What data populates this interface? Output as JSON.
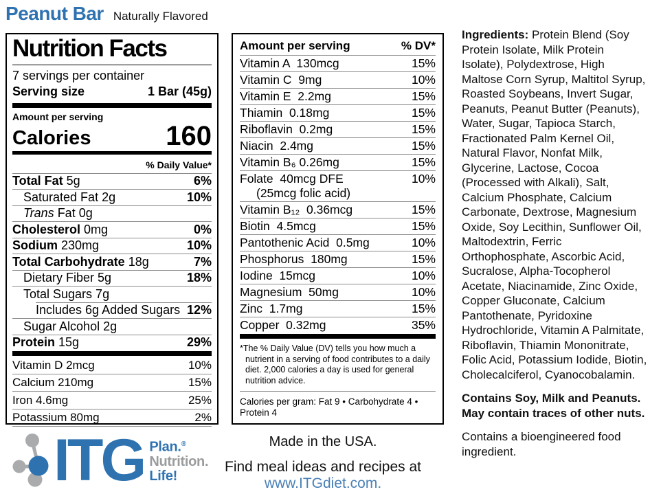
{
  "colors": {
    "brand_blue": "#2e72b0",
    "logo_gray": "#9a9c9e",
    "link_blue": "#4a80b5",
    "rule_gray": "#8a8a8a"
  },
  "header": {
    "product_name": "Peanut Bar",
    "subtitle": "Naturally Flavored"
  },
  "nutrition_facts": {
    "title": "Nutrition Facts",
    "servings_per_container": "7 servings per container",
    "serving_size_label": "Serving size",
    "serving_size_value": "1 Bar (45g)",
    "amount_per_serving": "Amount per serving",
    "calories_label": "Calories",
    "calories_value": "160",
    "daily_value_header": "% Daily Value*",
    "rows": [
      {
        "parts": [
          [
            "Total Fat",
            "b"
          ],
          [
            " 5g",
            ""
          ]
        ],
        "dv": "6%",
        "indent": 0
      },
      {
        "parts": [
          [
            "Saturated Fat 2g",
            ""
          ]
        ],
        "dv": "10%",
        "indent": 1
      },
      {
        "parts": [
          [
            "Trans",
            "i"
          ],
          [
            " Fat 0g",
            ""
          ]
        ],
        "dv": "",
        "indent": 1
      },
      {
        "parts": [
          [
            "Cholesterol",
            "b"
          ],
          [
            " 0mg",
            ""
          ]
        ],
        "dv": "0%",
        "indent": 0
      },
      {
        "parts": [
          [
            "Sodium",
            "b"
          ],
          [
            " 230mg",
            ""
          ]
        ],
        "dv": "10%",
        "indent": 0
      },
      {
        "parts": [
          [
            "Total Carbohydrate",
            "b"
          ],
          [
            " 18g",
            ""
          ]
        ],
        "dv": "7%",
        "indent": 0
      },
      {
        "parts": [
          [
            "Dietary Fiber 5g",
            ""
          ]
        ],
        "dv": "18%",
        "indent": 1
      },
      {
        "parts": [
          [
            "Total Sugars 7g",
            ""
          ]
        ],
        "dv": "",
        "indent": 1
      },
      {
        "parts": [
          [
            "Includes 6g Added Sugars",
            ""
          ]
        ],
        "dv": "12%",
        "indent": 2,
        "sep_indent": true
      },
      {
        "parts": [
          [
            "Sugar Alcohol 2g",
            ""
          ]
        ],
        "dv": "",
        "indent": 1
      },
      {
        "parts": [
          [
            "Protein",
            "b"
          ],
          [
            " 15g",
            ""
          ]
        ],
        "dv": "29%",
        "indent": 0
      }
    ],
    "micros": [
      {
        "name": "Vitamin D 2mcg",
        "dv": "10%"
      },
      {
        "name": "Calcium 210mg",
        "dv": "15%"
      },
      {
        "name": "Iron 4.6mg",
        "dv": "25%"
      },
      {
        "name": "Potassium 80mg",
        "dv": "2%"
      }
    ]
  },
  "vitamin_panel": {
    "header_left": "Amount per serving",
    "header_right": "% DV*",
    "rows": [
      {
        "name": "Vitamin A  130mcg",
        "dv": "15%"
      },
      {
        "name": "Vitamin C  9mg",
        "dv": "10%"
      },
      {
        "name": "Vitamin E  2.2mg",
        "dv": "15%"
      },
      {
        "name": "Thiamin  0.18mg",
        "dv": "15%"
      },
      {
        "name": "Riboflavin  0.2mg",
        "dv": "15%"
      },
      {
        "name": "Niacin  2.4mg",
        "dv": "15%"
      },
      {
        "name": "Vitamin B₆ 0.26mg",
        "dv": "15%"
      },
      {
        "name": "Folate  40mcg DFE",
        "dv": "10%",
        "line2": "(25mcg folic acid)"
      },
      {
        "name": "Vitamin B₁₂  0.36mcg",
        "dv": "15%"
      },
      {
        "name": "Biotin  4.5mcg",
        "dv": "15%"
      },
      {
        "name": "Pantothenic Acid  0.5mg",
        "dv": "10%"
      },
      {
        "name": "Phosphorus  180mg",
        "dv": "15%"
      },
      {
        "name": "Iodine  15mcg",
        "dv": "10%"
      },
      {
        "name": "Magnesium  50mg",
        "dv": "10%"
      },
      {
        "name": "Zinc  1.7mg",
        "dv": "15%"
      },
      {
        "name": "Copper  0.32mg",
        "dv": "35%"
      }
    ],
    "footnote": "*The % Daily Value (DV) tells you how much a nutrient in a serving of food contributes to a daily diet. 2,000 calories a day is used for general nutrition advice.",
    "calories_per_gram": "Calories per gram: Fat 9 • Carbohydrate 4 • Protein 4"
  },
  "ingredients": {
    "label": "Ingredients:",
    "text": " Protein Blend (Soy Protein Isolate, Milk Protein Isolate), Polydextrose, High Maltose Corn Syrup, Maltitol Syrup, Roasted Soybeans, Invert Sugar, Peanuts, Peanut Butter (Peanuts), Water, Sugar, Tapioca Starch, Fractionated Palm Kernel Oil, Natural Flavor, Nonfat Milk, Glycerine, Lactose, Cocoa (Processed with Alkali), Salt, Calcium Phosphate, Calcium Carbonate, Dextrose, Magnesium Oxide, Soy Lecithin, Sunflower Oil, Maltodextrin, Ferric Orthophosphate, Ascorbic Acid, Sucralose, Alpha-Tocopherol Acetate, Niacinamide, Zinc Oxide, Copper Gluconate, Calcium Pantothenate, Pyridoxine Hydrochloride, Vitamin A Palmitate, Riboflavin, Thiamin Mononitrate, Folic Acid, Potassium Iodide, Biotin, Cholecalciferol, Cyanocobalamin.",
    "allergen": "Contains Soy, Milk and Peanuts. May contain traces of other nuts.",
    "bioengineered": "Contains a bioengineered food ingredient."
  },
  "footer": {
    "logo_text": "ITG",
    "tagline_plan": "Plan.",
    "tagline_reg": "®",
    "tagline_nutrition": "Nutrition.",
    "tagline_life": "Life!",
    "made_in": "Made in the USA.",
    "find_text": "Find meal ideas and recipes at",
    "website": "www.ITGdiet.com."
  }
}
